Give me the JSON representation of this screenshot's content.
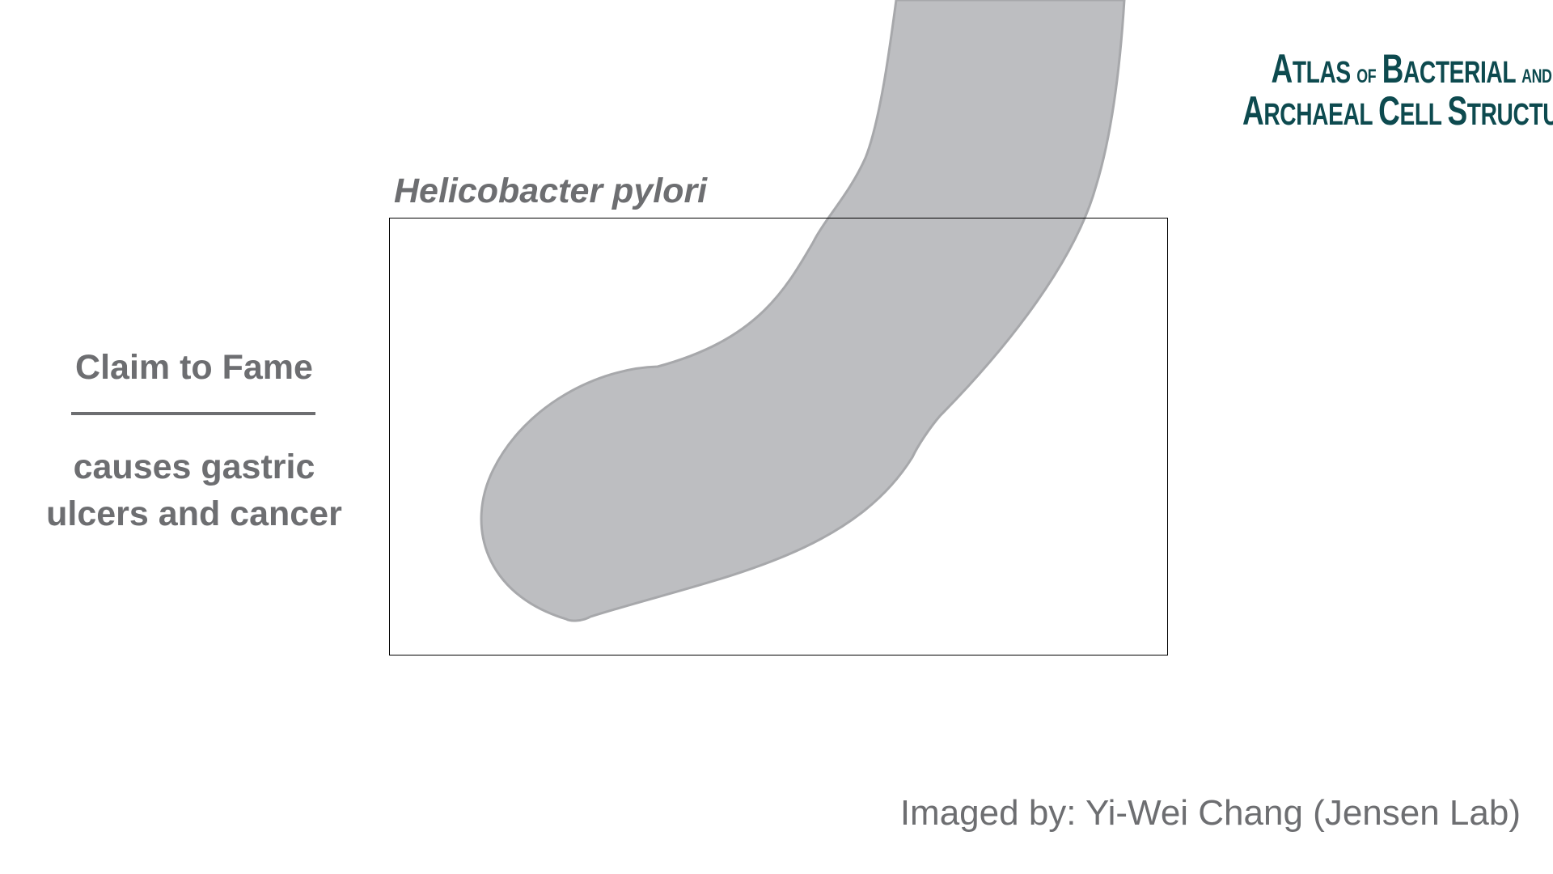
{
  "logo": {
    "line1_cap": "A",
    "line1_rest": "TLAS",
    "line1_of": "OF",
    "line1_cap2": "B",
    "line1_rest2": "ACTERIAL",
    "line1_and": "AND",
    "line2_cap": "A",
    "line2_rest": "RCHAEAL",
    "line2_cap2": "C",
    "line2_rest2": "ELL",
    "line2_cap3": "S",
    "line2_rest3": "TRUCTURE"
  },
  "species_title": "Helicobacter pylori",
  "claim": {
    "heading": "Claim to Fame",
    "text_line1": "causes gastric",
    "text_line2": "ulcers and cancer"
  },
  "credit": "Imaged by: Yi-Wei Chang (Jensen Lab)",
  "colors": {
    "cell_fill": "#bdbec1",
    "cell_stroke": "#a7a8ab",
    "text_gray": "#6d6e71",
    "logo_teal": "#0d4a4f"
  }
}
